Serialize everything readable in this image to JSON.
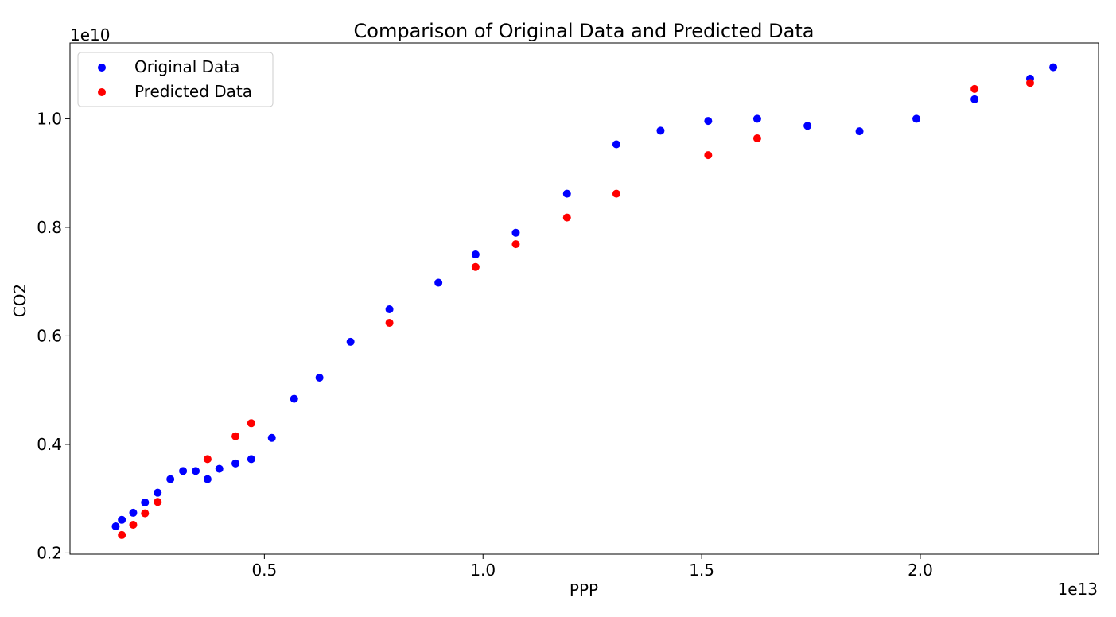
{
  "chart_data": {
    "type": "scatter",
    "title": "Comparison of Original Data and Predicted Data",
    "xlabel": "PPP",
    "ylabel": "CO2",
    "x_offset_text": "1e13",
    "y_offset_text": "1e10",
    "xlim": [
      0.0555,
      2.4075
    ],
    "ylim": [
      0.1977,
      1.1398
    ],
    "x_ticks": [
      0.5,
      1.0,
      1.5,
      2.0
    ],
    "x_tick_labels": [
      "0.5",
      "1.0",
      "1.5",
      "2.0"
    ],
    "y_ticks": [
      0.2,
      0.4,
      0.6,
      0.8,
      1.0
    ],
    "y_tick_labels": [
      "0.2",
      "0.4",
      "0.6",
      "0.8",
      "1.0"
    ],
    "grid": false,
    "legend_position": "upper-left",
    "series": [
      {
        "name": "Original Data",
        "color": "#0000ff",
        "x": [
          0.16,
          0.174,
          0.2,
          0.227,
          0.256,
          0.285,
          0.314,
          0.343,
          0.37,
          0.397,
          0.434,
          0.47,
          0.517,
          0.568,
          0.626,
          0.697,
          0.786,
          0.898,
          0.983,
          1.075,
          1.192,
          1.305,
          1.406,
          1.515,
          1.627,
          1.742,
          1.861,
          1.991,
          2.124,
          2.251,
          2.304
        ],
        "y": [
          0.249,
          0.261,
          0.274,
          0.293,
          0.311,
          0.336,
          0.351,
          0.351,
          0.336,
          0.355,
          0.365,
          0.373,
          0.412,
          0.484,
          0.523,
          0.589,
          0.649,
          0.698,
          0.75,
          0.79,
          0.862,
          0.953,
          0.978,
          0.996,
          1.0,
          0.987,
          0.977,
          1.0,
          1.036,
          1.074,
          1.095
        ]
      },
      {
        "name": "Predicted Data",
        "color": "#ff0000",
        "x": [
          0.174,
          0.2,
          0.227,
          0.256,
          0.37,
          0.434,
          0.47,
          0.786,
          0.983,
          1.075,
          1.192,
          1.305,
          1.515,
          1.627,
          2.124,
          2.251
        ],
        "y": [
          0.233,
          0.252,
          0.273,
          0.294,
          0.373,
          0.415,
          0.439,
          0.624,
          0.727,
          0.769,
          0.818,
          0.862,
          0.933,
          0.964,
          1.055,
          1.066
        ]
      }
    ]
  }
}
